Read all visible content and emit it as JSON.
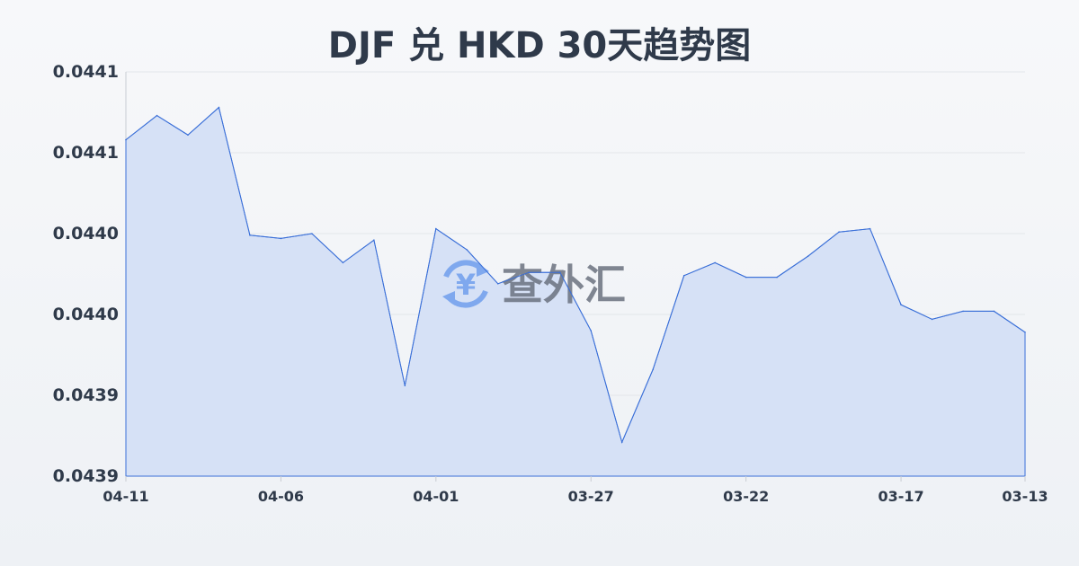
{
  "chart_data": {
    "type": "area",
    "title": "DJF 兑 HKD 30天趋势图",
    "xlabel": "",
    "ylabel": "",
    "x": [
      "04-11",
      "04-10",
      "04-09",
      "04-08",
      "04-07",
      "04-06",
      "04-05",
      "04-04",
      "04-03",
      "04-02",
      "04-01",
      "03-31",
      "03-30",
      "03-29",
      "03-28",
      "03-27",
      "03-26",
      "03-25",
      "03-24",
      "03-23",
      "03-22",
      "03-21",
      "03-20",
      "03-19",
      "03-18",
      "03-17",
      "03-16",
      "03-15",
      "03-14",
      "03-13"
    ],
    "values": [
      0.044058,
      0.044073,
      0.044061,
      0.044078,
      0.043999,
      0.043997,
      0.044,
      0.043982,
      0.043996,
      0.043906,
      0.044003,
      0.04399,
      0.043969,
      0.043976,
      0.043976,
      0.04394,
      0.043871,
      0.043916,
      0.043974,
      0.043982,
      0.043973,
      0.043973,
      0.043986,
      0.044001,
      0.044003,
      0.043956,
      0.043947,
      0.043952,
      0.043952,
      0.043939
    ],
    "xtick_labels": [
      "04-11",
      "04-06",
      "04-01",
      "03-27",
      "03-22",
      "03-17",
      "03-13"
    ],
    "yticks": [
      0.0441,
      0.04405,
      0.044,
      0.04395,
      0.0439,
      0.04385
    ],
    "ytick_labels": [
      "0.0441",
      "0.0441",
      "0.0440",
      "0.0440",
      "0.0439",
      "0.0439"
    ],
    "ylim": [
      0.04385,
      0.0441
    ],
    "grid": true,
    "legend": "none",
    "colors": {
      "line": "#3a6fd8",
      "fill": "#d6e1f6",
      "grid": "#e3e6ea",
      "text": "#2f3a4a"
    }
  },
  "watermark": {
    "text": "查外汇",
    "icon": "yen-exchange-icon",
    "icon_color": "#7fa8ee"
  }
}
